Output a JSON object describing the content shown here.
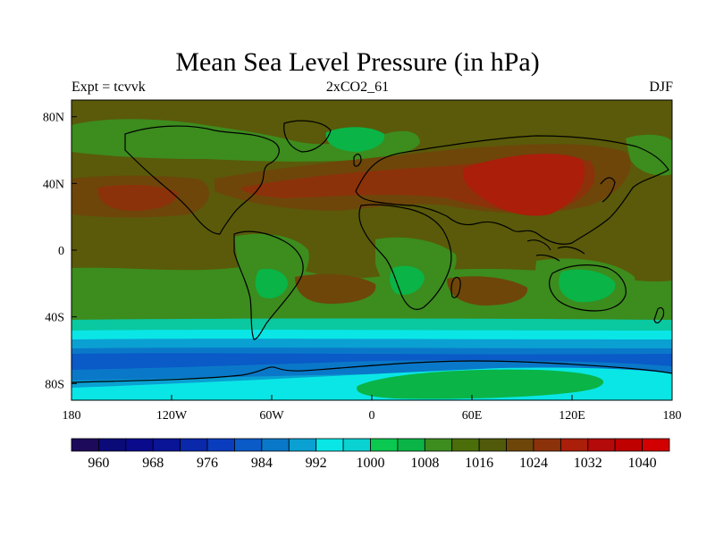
{
  "title": "Mean Sea Level Pressure (in hPa)",
  "subtitle_left": "Expt = tcvvk",
  "subtitle_center": "2xCO2_61",
  "subtitle_right": "DJF",
  "map": {
    "projection": "cylindrical-equidistant",
    "lon_range": [
      -180,
      180
    ],
    "lat_range": [
      -90,
      90
    ],
    "x_ticks": [
      {
        "value": -180,
        "label": "180"
      },
      {
        "value": -120,
        "label": "120W"
      },
      {
        "value": -60,
        "label": "60W"
      },
      {
        "value": 0,
        "label": "0"
      },
      {
        "value": 60,
        "label": "60E"
      },
      {
        "value": 120,
        "label": "120E"
      },
      {
        "value": 180,
        "label": "180"
      }
    ],
    "y_ticks": [
      {
        "value": 80,
        "label": "80N"
      },
      {
        "value": 40,
        "label": "40N"
      },
      {
        "value": 0,
        "label": "0"
      },
      {
        "value": -40,
        "label": "40S"
      },
      {
        "value": -80,
        "label": "80S"
      }
    ],
    "background_color": "#5a5a0a"
  },
  "colorbar": {
    "colors": [
      "#1e0a5a",
      "#0a0a78",
      "#0a0a8c",
      "#0a1496",
      "#0a28aa",
      "#0a3cbe",
      "#0a5ac8",
      "#0a78c8",
      "#0aa0d2",
      "#0ae6e6",
      "#0ad2d2",
      "#0ac850",
      "#0ab446",
      "#3c8c1e",
      "#4b6e0a",
      "#505a0a",
      "#6e460a",
      "#8c320a",
      "#aa1e0a",
      "#b40a0a",
      "#be0000",
      "#d20000"
    ],
    "labels": [
      {
        "text": "960",
        "index": 2
      },
      {
        "text": "968",
        "index": 4
      },
      {
        "text": "976",
        "index": 6
      },
      {
        "text": "984",
        "index": 8
      },
      {
        "text": "992",
        "index": 10
      },
      {
        "text": "1000",
        "index": 12
      },
      {
        "text": "1008",
        "index": 14
      },
      {
        "text": "1016",
        "index": 16
      },
      {
        "text": "1024",
        "index": 18
      },
      {
        "text": "1032",
        "index": 20
      },
      {
        "text": "1040",
        "index": 22
      }
    ]
  }
}
